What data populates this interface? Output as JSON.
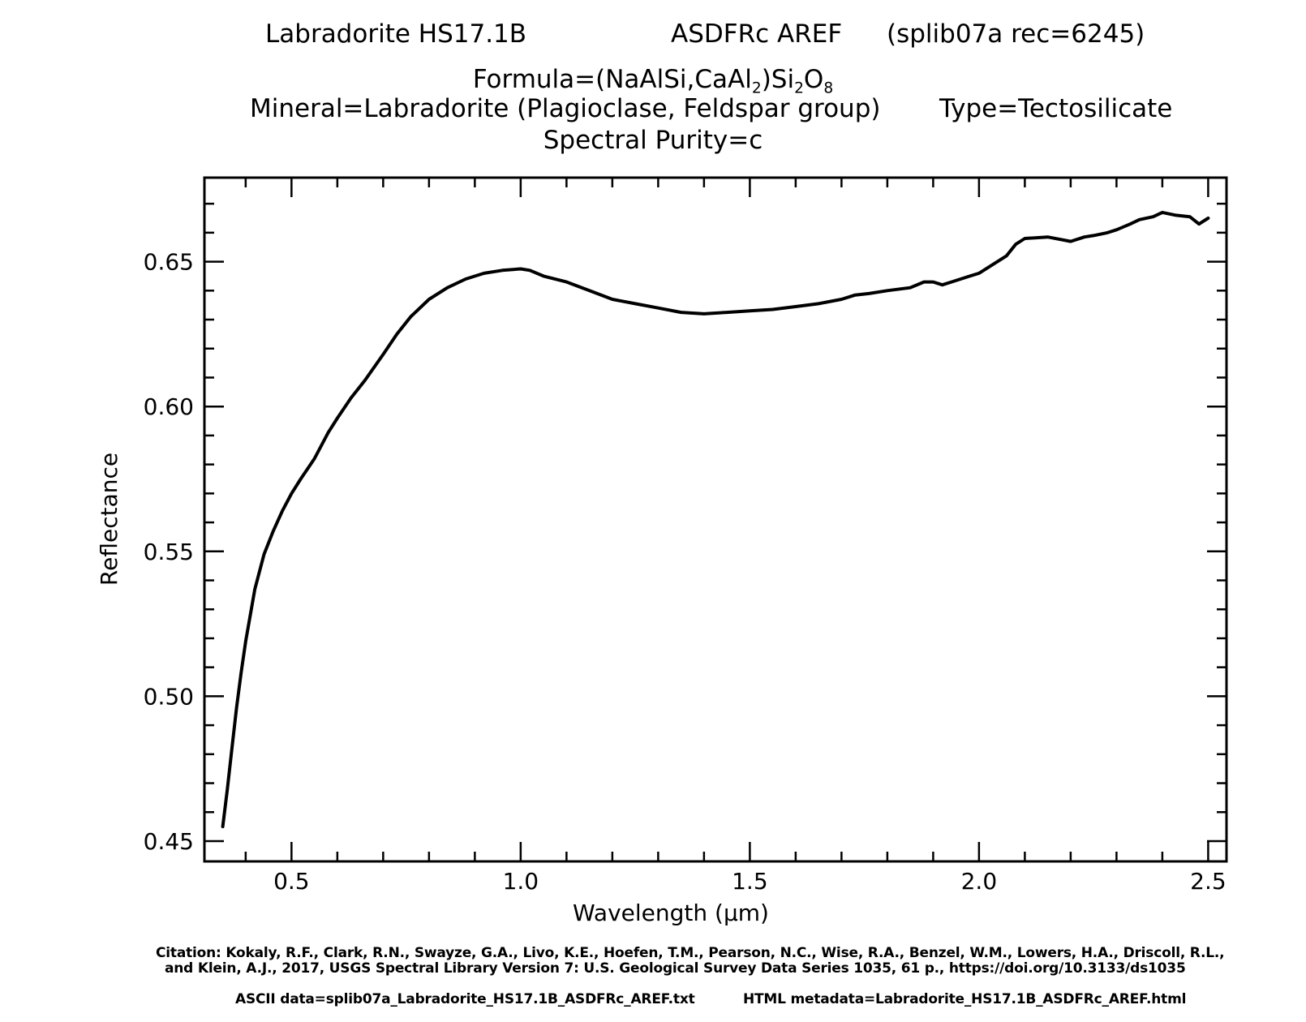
{
  "header": {
    "sample": "Labradorite HS17.1B",
    "instrument": "ASDFRc AREF",
    "record": "(splib07a rec=6245)",
    "formula_prefix": "Formula=(NaAlSi,CaAl",
    "formula_sub1": "2",
    "formula_mid": ")Si",
    "formula_sub2": "2",
    "formula_o": "O",
    "formula_sub3": "8",
    "mineral": "Mineral=Labradorite (Plagioclase, Feldspar group)",
    "type": "Type=Tectosilicate",
    "purity": "Spectral Purity=c"
  },
  "footer": {
    "citation_line1": "Citation: Kokaly, R.F., Clark, R.N., Swayze, G.A., Livo, K.E., Hoefen, T.M., Pearson, N.C., Wise, R.A., Benzel, W.M., Lowers, H.A., Driscoll, R.L.,",
    "citation_line2": "and Klein, A.J., 2017, USGS Spectral Library Version 7: U.S. Geological Survey Data Series 1035, 61 p., https://doi.org/10.3133/ds1035",
    "ascii": "ASCII data=splib07a_Labradorite_HS17.1B_ASDFRc_AREF.txt",
    "html": "HTML metadata=Labradorite_HS17.1B_ASDFRc_AREF.html"
  },
  "chart_data": {
    "type": "line",
    "title": "",
    "xlabel": "Wavelength (μm)",
    "ylabel": "Reflectance",
    "xlim": [
      0.31,
      2.54
    ],
    "ylim": [
      0.443,
      0.679
    ],
    "xticks": [
      0.5,
      1.0,
      1.5,
      2.0,
      2.5
    ],
    "xtick_labels": [
      "0.5",
      "1.0",
      "1.5",
      "2.0",
      "2.5"
    ],
    "yticks": [
      0.45,
      0.5,
      0.55,
      0.6,
      0.65
    ],
    "ytick_labels": [
      "0.45",
      "0.50",
      "0.55",
      "0.60",
      "0.65"
    ],
    "grid": false,
    "line_color": "#000000",
    "series": [
      {
        "x": [
          0.35,
          0.36,
          0.37,
          0.38,
          0.39,
          0.4,
          0.42,
          0.44,
          0.46,
          0.48,
          0.5,
          0.52,
          0.55,
          0.58,
          0.6,
          0.63,
          0.66,
          0.7,
          0.73,
          0.76,
          0.8,
          0.84,
          0.88,
          0.92,
          0.96,
          1.0,
          1.02,
          1.05,
          1.1,
          1.15,
          1.2,
          1.25,
          1.3,
          1.35,
          1.4,
          1.45,
          1.5,
          1.55,
          1.6,
          1.65,
          1.7,
          1.73,
          1.76,
          1.8,
          1.85,
          1.88,
          1.9,
          1.92,
          1.94,
          1.96,
          1.98,
          2.0,
          2.03,
          2.06,
          2.08,
          2.1,
          2.15,
          2.2,
          2.23,
          2.25,
          2.28,
          2.3,
          2.33,
          2.35,
          2.38,
          2.4,
          2.43,
          2.46,
          2.48,
          2.49,
          2.5
        ],
        "y": [
          0.455,
          0.468,
          0.482,
          0.496,
          0.508,
          0.519,
          0.537,
          0.549,
          0.557,
          0.564,
          0.57,
          0.575,
          0.582,
          0.591,
          0.596,
          0.603,
          0.609,
          0.618,
          0.625,
          0.631,
          0.637,
          0.641,
          0.644,
          0.646,
          0.647,
          0.6475,
          0.647,
          0.645,
          0.643,
          0.64,
          0.637,
          0.6355,
          0.634,
          0.6325,
          0.632,
          0.6325,
          0.633,
          0.6335,
          0.6345,
          0.6355,
          0.637,
          0.6385,
          0.639,
          0.64,
          0.641,
          0.643,
          0.643,
          0.642,
          0.643,
          0.644,
          0.645,
          0.646,
          0.649,
          0.652,
          0.656,
          0.658,
          0.6585,
          0.657,
          0.6585,
          0.659,
          0.66,
          0.661,
          0.663,
          0.6645,
          0.6655,
          0.667,
          0.666,
          0.6655,
          0.663,
          0.664,
          0.665
        ]
      }
    ]
  }
}
